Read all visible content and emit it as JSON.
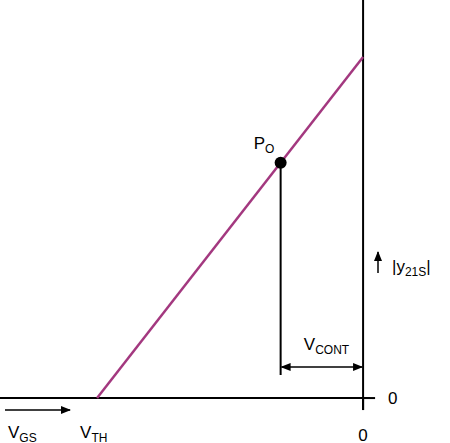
{
  "chart_data": {
    "type": "line",
    "x_label": {
      "main": "V",
      "sub": "GS"
    },
    "y_label": {
      "main": "|y",
      "sub": "21S",
      "tail": "|"
    },
    "xlim": [
      -1.365,
      0.026
    ],
    "ylim": [
      -0.035,
      1.167
    ],
    "xticks": [
      0
    ],
    "yticks": [
      0
    ],
    "series": [
      {
        "color": "#a3387f",
        "x": [
          -1,
          0
        ],
        "values": [
          0,
          1
        ]
      }
    ],
    "annotations": [
      {
        "label": {
          "main": "V",
          "sub": "TH"
        },
        "x": -1
      },
      {
        "label": {
          "main": "P",
          "sub": "O"
        },
        "x": -0.31,
        "y": 0.69
      },
      {
        "label": {
          "main": "V",
          "sub": "CONT"
        },
        "x_from": -0.31,
        "x_to": 0
      }
    ]
  }
}
